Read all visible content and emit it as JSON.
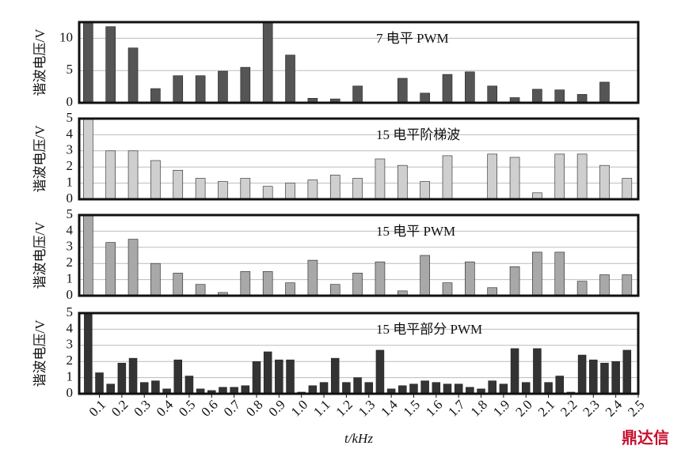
{
  "chart_data": [
    {
      "type": "bar",
      "annotation": "7 电平 PWM",
      "ylabel": "谐波电压/V",
      "color": "#555555",
      "x": [
        0.05,
        0.15,
        0.25,
        0.35,
        0.45,
        0.55,
        0.65,
        0.75,
        0.85,
        0.95,
        1.05,
        1.15,
        1.25,
        1.35,
        1.45,
        1.55,
        1.65,
        1.75,
        1.85,
        1.95,
        2.05,
        2.15,
        2.25,
        2.35,
        2.45
      ],
      "values": [
        12.5,
        11.8,
        8.5,
        2.2,
        4.2,
        4.2,
        4.9,
        5.5,
        12.5,
        7.4,
        0.7,
        0.6,
        2.6,
        0,
        3.8,
        1.5,
        4.4,
        4.8,
        2.6,
        0.8,
        2.1,
        2.0,
        1.3,
        3.2,
        0
      ],
      "xlim": [
        0.01,
        2.5
      ],
      "ylim": [
        0,
        12.5
      ],
      "yticks": [
        0,
        5,
        10
      ],
      "grid": true
    },
    {
      "type": "bar",
      "annotation": "15 电平阶梯波",
      "ylabel": "谐波电压/V",
      "color": "#cfcfcf",
      "x": [
        0.05,
        0.15,
        0.25,
        0.35,
        0.45,
        0.55,
        0.65,
        0.75,
        0.85,
        0.95,
        1.05,
        1.15,
        1.25,
        1.35,
        1.45,
        1.55,
        1.65,
        1.75,
        1.85,
        1.95,
        2.05,
        2.15,
        2.25,
        2.35,
        2.45
      ],
      "values": [
        5,
        3.0,
        3.0,
        2.4,
        1.8,
        1.3,
        1.1,
        1.3,
        0.8,
        1.0,
        1.2,
        1.5,
        1.3,
        2.5,
        2.1,
        1.1,
        2.7,
        0,
        2.8,
        2.6,
        0.4,
        2.8,
        2.8,
        2.1,
        1.3
      ],
      "xlim": [
        0.01,
        2.5
      ],
      "ylim": [
        0,
        5
      ],
      "yticks": [
        0,
        1,
        2,
        3,
        4,
        5
      ],
      "grid": true
    },
    {
      "type": "bar",
      "annotation": "15 电平 PWM",
      "ylabel": "谐波电压/V",
      "color": "#a8a8a8",
      "x": [
        0.05,
        0.15,
        0.25,
        0.35,
        0.45,
        0.55,
        0.65,
        0.75,
        0.85,
        0.95,
        1.05,
        1.15,
        1.25,
        1.35,
        1.45,
        1.55,
        1.65,
        1.75,
        1.85,
        1.95,
        2.05,
        2.15,
        2.25,
        2.35,
        2.45
      ],
      "values": [
        5,
        3.3,
        3.5,
        2.0,
        1.4,
        0.7,
        0.2,
        1.5,
        1.5,
        0.8,
        2.2,
        0.7,
        1.4,
        2.1,
        0.3,
        2.5,
        0.8,
        2.1,
        0.5,
        1.8,
        2.7,
        2.7,
        0.9,
        1.3,
        1.3
      ],
      "xlim": [
        0.01,
        2.5
      ],
      "ylim": [
        0,
        5
      ],
      "yticks": [
        0,
        1,
        2,
        3,
        4,
        5
      ],
      "grid": true
    },
    {
      "type": "bar",
      "annotation": "15 电平部分 PWM",
      "ylabel": "谐波电压/V",
      "xlabel": "t/kHz",
      "color": "#333333",
      "x": [
        0.05,
        0.1,
        0.15,
        0.2,
        0.25,
        0.3,
        0.35,
        0.4,
        0.45,
        0.5,
        0.55,
        0.6,
        0.65,
        0.7,
        0.75,
        0.8,
        0.85,
        0.9,
        0.95,
        1.0,
        1.05,
        1.1,
        1.15,
        1.2,
        1.25,
        1.3,
        1.35,
        1.4,
        1.45,
        1.5,
        1.55,
        1.6,
        1.65,
        1.7,
        1.75,
        1.8,
        1.85,
        1.9,
        1.95,
        2.0,
        2.05,
        2.1,
        2.15,
        2.2,
        2.25,
        2.3,
        2.35,
        2.4,
        2.45
      ],
      "values": [
        5,
        1.3,
        0.6,
        1.9,
        2.2,
        0.7,
        0.8,
        0.3,
        2.1,
        1.1,
        0.3,
        0.2,
        0.4,
        0.4,
        0.5,
        2.0,
        2.6,
        2.1,
        2.1,
        0.1,
        0.5,
        0.7,
        2.2,
        0.7,
        1.0,
        0.7,
        2.7,
        0.3,
        0.5,
        0.6,
        0.8,
        0.7,
        0.6,
        0.6,
        0.4,
        0.3,
        0.8,
        0.6,
        2.8,
        0.7,
        2.8,
        0.7,
        1.1,
        0.1,
        2.4,
        2.1,
        1.9,
        2.0,
        2.7
      ],
      "xlim": [
        0.01,
        2.5
      ],
      "ylim": [
        0,
        5
      ],
      "yticks": [
        0,
        1,
        2,
        3,
        4,
        5
      ],
      "xticks": [
        0.1,
        0.2,
        0.3,
        0.4,
        0.5,
        0.6,
        0.7,
        0.8,
        0.9,
        {
          "value": 1.0,
          "label": "1.0"
        },
        1.1,
        1.2,
        1.3,
        1.4,
        1.5,
        1.6,
        1.7,
        1.8,
        1.9,
        {
          "value": 2.0,
          "label": "2.0"
        },
        2.1,
        2.2,
        2.3,
        2.4,
        2.5
      ],
      "grid": true
    }
  ],
  "watermark": "鼎达信"
}
